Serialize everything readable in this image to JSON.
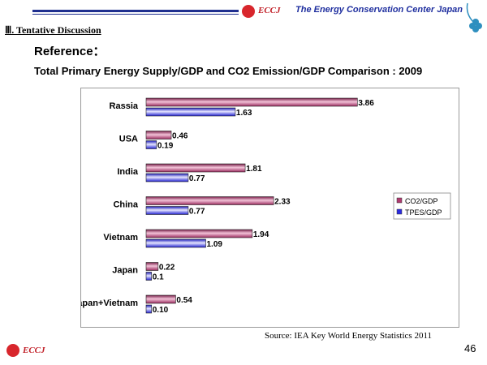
{
  "header": {
    "brand": "ECCJ",
    "organization": "The Energy Conservation Center Japan",
    "section": "Ⅲ. Tentative Discussion"
  },
  "reference_label": "Reference：",
  "chart_data": {
    "type": "bar",
    "orientation": "horizontal",
    "title": "Total Primary Energy Supply/GDP and CO2 Emission/GDP Comparison : 2009",
    "categories": [
      "Rassia",
      "USA",
      "India",
      "China",
      "Vietnam",
      "Japan",
      "Japan+Vietnam"
    ],
    "series": [
      {
        "name": "CO2/GDP",
        "values": [
          3.86,
          0.46,
          1.81,
          2.33,
          1.94,
          0.22,
          0.54
        ],
        "labels": [
          "3.86",
          "0.46",
          "1.81",
          "2.33",
          "1.94",
          "0.22",
          "0.54"
        ],
        "color": "#b03a70"
      },
      {
        "name": "TPES/GDP",
        "values": [
          1.63,
          0.19,
          0.77,
          0.77,
          1.09,
          0.1,
          0.1
        ],
        "labels": [
          "1.63",
          "0.19",
          "0.77",
          "0.77",
          "1.09",
          "0.1",
          "0.10"
        ],
        "color": "#2a2ae0"
      }
    ],
    "xlim": [
      0,
      4.3
    ],
    "legend": "right",
    "grid": false
  },
  "footer": {
    "source": "Source: IEA Key World Energy Statistics 2011",
    "page_number": "46",
    "brand": "ECCJ"
  }
}
